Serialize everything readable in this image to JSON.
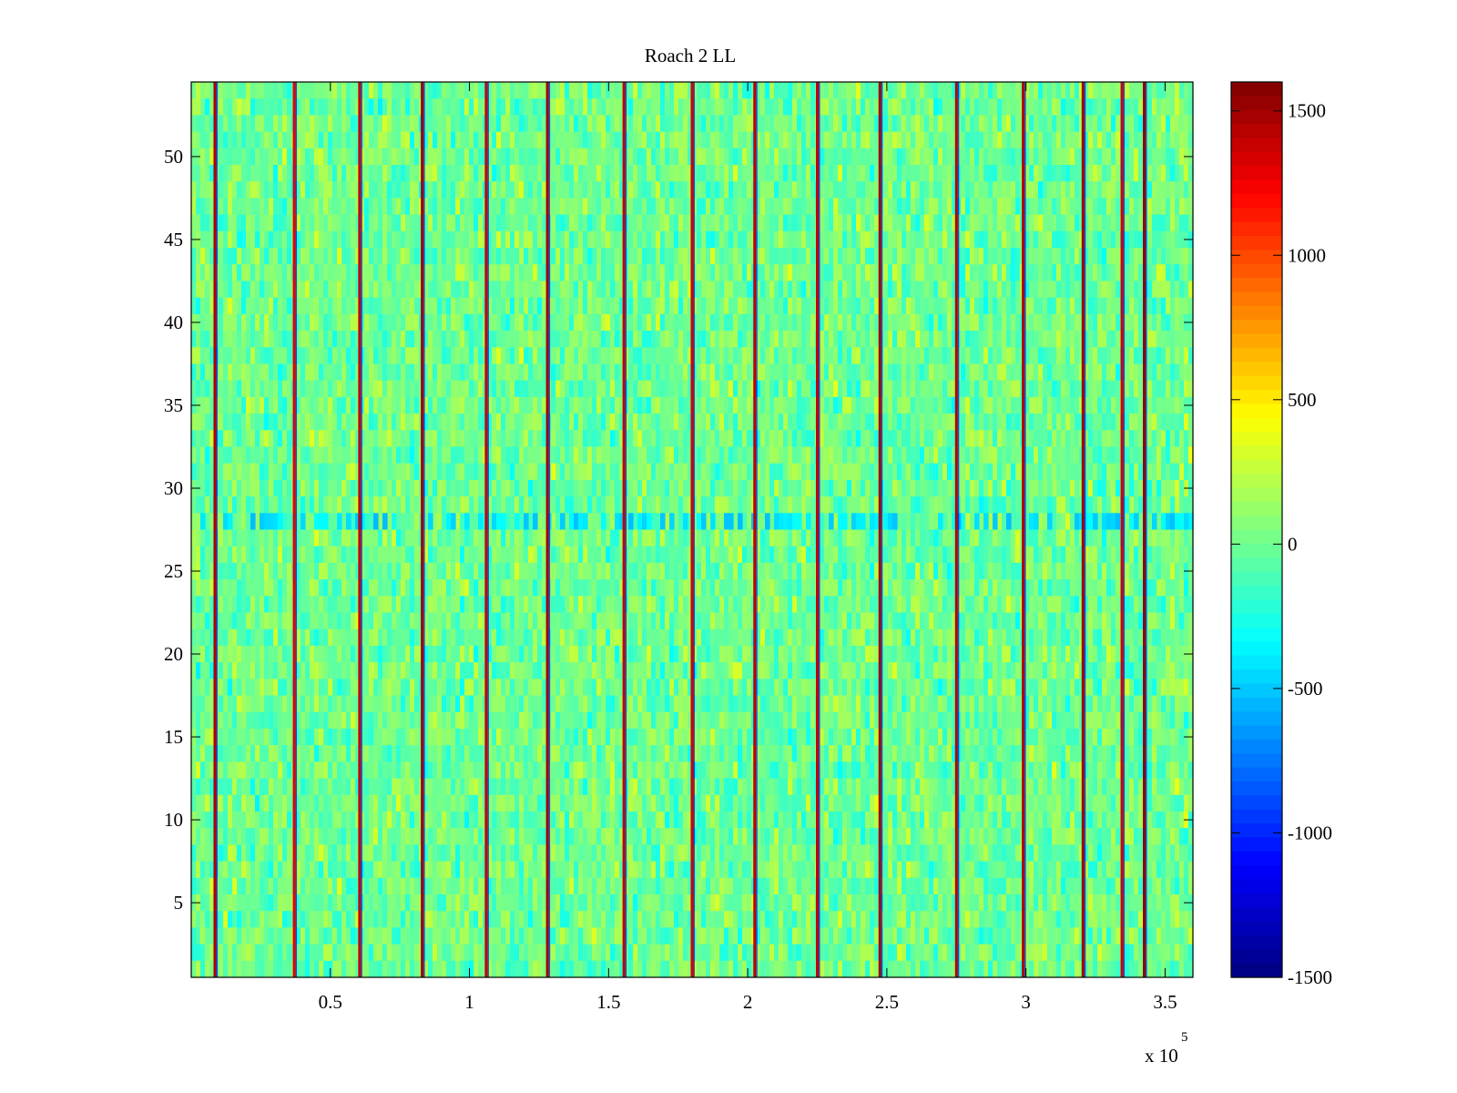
{
  "chart_data": {
    "type": "heatmap",
    "title": "Roach 2 LL",
    "xlabel": "",
    "ylabel": "",
    "xlim": [
      0,
      360000
    ],
    "ylim": [
      0.5,
      54.5
    ],
    "x_ticks": [
      50000,
      100000,
      150000,
      200000,
      250000,
      300000,
      350000
    ],
    "x_tick_labels": [
      "0.5",
      "1",
      "1.5",
      "2",
      "2.5",
      "3",
      "3.5"
    ],
    "x_exponent_label": "x 10",
    "x_exponent_power": "5",
    "y_ticks": [
      5,
      10,
      15,
      20,
      25,
      30,
      35,
      40,
      45,
      50
    ],
    "y_tick_labels": [
      "5",
      "10",
      "15",
      "20",
      "25",
      "30",
      "35",
      "40",
      "45",
      "50"
    ],
    "rows": 54,
    "colormap": "jet",
    "clim": [
      -1500,
      1600
    ],
    "colorbar_ticks": [
      1500,
      1000,
      500,
      0,
      -500,
      -1000,
      -1500
    ],
    "colorbar_tick_labels": [
      "1500",
      "1000",
      "500",
      "0",
      "-500",
      "-1000",
      "-1500"
    ],
    "background_value_range": [
      -400,
      400
    ],
    "vertical_stripes": [
      {
        "x": 8500,
        "value": 1450
      },
      {
        "x": 37000,
        "value": 1300
      },
      {
        "x": 60500,
        "value": 1400
      },
      {
        "x": 83000,
        "value": 1500
      },
      {
        "x": 106000,
        "value": 1400
      },
      {
        "x": 128000,
        "value": 1500
      },
      {
        "x": 155500,
        "value": 1400
      },
      {
        "x": 180000,
        "value": 1350
      },
      {
        "x": 202500,
        "value": 1400
      },
      {
        "x": 225000,
        "value": 1400
      },
      {
        "x": 247500,
        "value": 1500
      },
      {
        "x": 275000,
        "value": 1450
      },
      {
        "x": 299000,
        "value": 1450
      },
      {
        "x": 320500,
        "value": 1500
      },
      {
        "x": 334500,
        "value": 1350
      },
      {
        "x": 342500,
        "value": 1550
      }
    ],
    "horizontal_band": {
      "row_from": 27.5,
      "row_to": 28.5,
      "value": -550
    }
  }
}
